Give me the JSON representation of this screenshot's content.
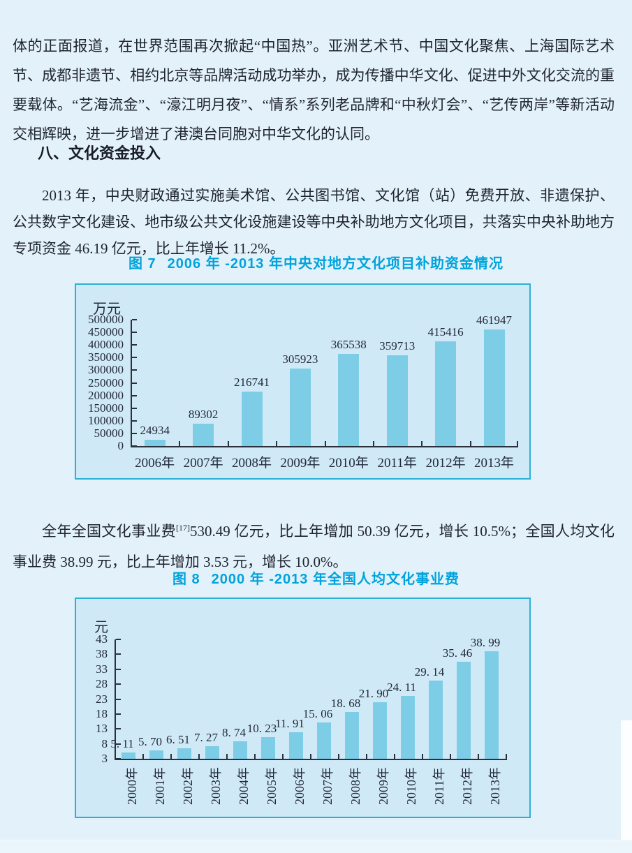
{
  "page": {
    "background": "#e3f1fa",
    "text_color": "#1e2430",
    "accent_color": "#00a3dc"
  },
  "paragraphs": {
    "p1": "体的正面报道，在世界范围再次掀起“中国热”。亚洲艺术节、中国文化聚焦、上海国际艺术节、成都非遗节、相约北京等品牌活动成功举办，成为传播中华文化、促进中外文化交流的重要载体。“艺海流金”、“濠江明月夜”、“情系”系列老品牌和“中秋灯会”、“艺传两岸”等新活动交相辉映，进一步增进了港澳台同胞对中华文化的认同。",
    "heading": "八、文化资金投入",
    "p2": "2013 年，中央财政通过实施美术馆、公共图书馆、文化馆（站）免费开放、非遗保护、公共数字文化建设、地市级公共文化设施建设等中央补助地方文化项目，共落实中央补助地方专项资金 46.19 亿元，比上年增长 11.2%。",
    "p3_before": "全年全国文化事业费",
    "p3_sup": "[17]",
    "p3_after": "530.49 亿元，比上年增加 50.39 亿元，增长 10.5%；全国人均文化事业费 38.99 元，比上年增加 3.53 元，增长 10.0%。"
  },
  "chart_data": [
    {
      "type": "bar",
      "figure_label": "图 7",
      "title": "2006 年 -2013 年中央对地方文化项目补助资金情况",
      "ylabel": "万元",
      "xlabel": "",
      "categories": [
        "2006年",
        "2007年",
        "2008年",
        "2009年",
        "2010年",
        "2011年",
        "2012年",
        "2013年"
      ],
      "values": [
        24934,
        89302,
        216741,
        305923,
        365538,
        359713,
        415416,
        461947
      ],
      "data_labels": [
        "24934",
        "89302",
        "216741",
        "305923",
        "365538",
        "359713",
        "415416",
        "461947"
      ],
      "yticks": [
        0,
        50000,
        100000,
        150000,
        200000,
        250000,
        300000,
        350000,
        400000,
        450000,
        500000
      ],
      "ylim": [
        0,
        500000
      ],
      "grid": false,
      "legend": "none",
      "bar_color": "#7dcde6",
      "plot_bg": "#cfeaf6",
      "border_color": "#2cb0d6"
    },
    {
      "type": "bar",
      "figure_label": "图 8",
      "title": "2000 年 -2013 年全国人均文化事业费",
      "ylabel": "元",
      "xlabel": "",
      "categories": [
        "2000年",
        "2001年",
        "2002年",
        "2003年",
        "2004年",
        "2005年",
        "2006年",
        "2007年",
        "2008年",
        "2009年",
        "2010年",
        "2011年",
        "2012年",
        "2013年"
      ],
      "values": [
        5.11,
        5.7,
        6.51,
        7.27,
        8.74,
        10.23,
        11.91,
        15.06,
        18.68,
        21.9,
        24.11,
        29.14,
        35.46,
        38.99
      ],
      "data_labels": [
        "5. 11",
        "5. 70",
        "6. 51",
        "7. 27",
        "8. 74",
        "10. 23",
        "11. 91",
        "15. 06",
        "18. 68",
        "21. 90",
        "24. 11",
        "29. 14",
        "35. 46",
        "38. 99"
      ],
      "yticks": [
        3,
        8,
        13,
        18,
        23,
        28,
        33,
        38,
        43
      ],
      "ylim": [
        3,
        43
      ],
      "grid": false,
      "legend": "none",
      "bar_color": "#7dcde6",
      "plot_bg": "#cfeaf6",
      "border_color": "#2cb0d6"
    }
  ]
}
